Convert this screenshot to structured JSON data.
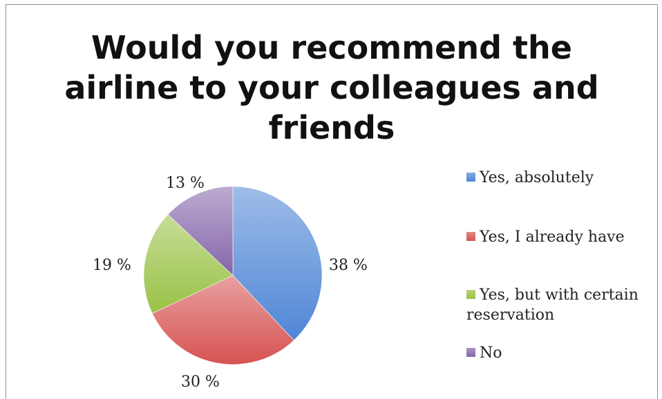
{
  "chart_data": {
    "type": "pie",
    "title": "Would you recommend the airline to your colleagues and friends",
    "title_lines": [
      "Would you recommend the",
      "airline to your colleagues and",
      "friends"
    ],
    "categories": [
      "Yes, absolutely",
      "Yes, I already have",
      "Yes, but with certain reservation",
      "No"
    ],
    "values": [
      38,
      30,
      19,
      13
    ],
    "value_labels": [
      "38 %",
      "30 %",
      "19 %",
      "13 %"
    ],
    "colors": [
      "#4f86d6",
      "#d65352",
      "#99c145",
      "#8566aa"
    ],
    "legend_position": "right",
    "start_angle": "12 o'clock, clockwise"
  }
}
